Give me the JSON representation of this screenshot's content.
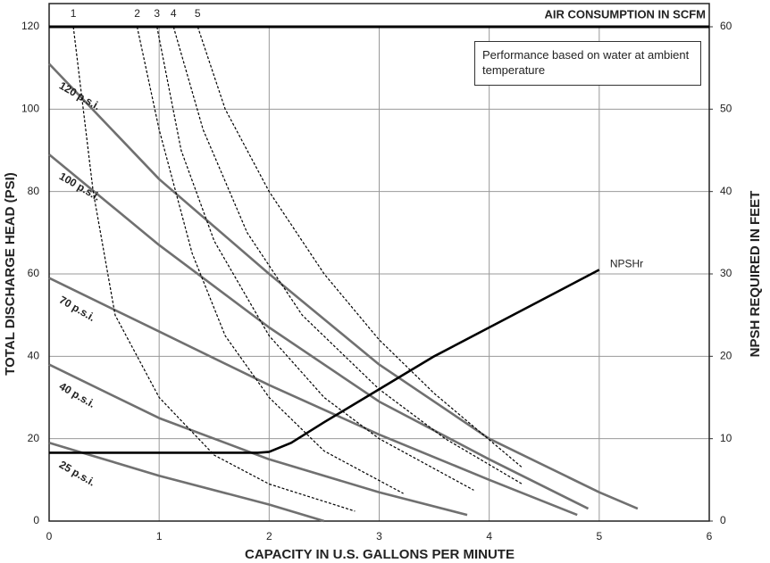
{
  "chart_data": {
    "type": "line",
    "top_label": "AIR CONSUMPTION IN SCFM",
    "x_label": "CAPACITY IN U.S. GALLONS PER MINUTE",
    "y_label": "TOTAL DISCHARGE HEAD (PSI)",
    "y2_label": "NPSH REQUIRED IN FEET",
    "annotation": "Performance based on water at ambient temperature",
    "xlim": [
      0,
      6
    ],
    "xticks": [
      0,
      1,
      2,
      3,
      4,
      5,
      6
    ],
    "ylim": [
      0,
      120
    ],
    "yticks": [
      0,
      20,
      40,
      60,
      80,
      100,
      120
    ],
    "y2lim": [
      0,
      60
    ],
    "y2ticks": [
      0,
      10,
      20,
      30,
      40,
      50,
      60
    ],
    "grid": true,
    "series": [
      {
        "name": "120 p.s.i.",
        "color": "#707070",
        "x": [
          0,
          1,
          2,
          3,
          4,
          5,
          5.35
        ],
        "values": [
          111,
          83,
          60,
          38,
          20,
          7,
          3
        ]
      },
      {
        "name": "100 p.s.i.",
        "color": "#707070",
        "x": [
          0,
          1,
          2,
          3,
          4,
          4.9
        ],
        "values": [
          89,
          67,
          47,
          29,
          15,
          3
        ]
      },
      {
        "name": "70 p.s.i.",
        "color": "#707070",
        "x": [
          0,
          1,
          2,
          3,
          4,
          4.8
        ],
        "values": [
          59,
          46,
          33,
          21,
          10,
          1.5
        ]
      },
      {
        "name": "40 p.s.i.",
        "color": "#707070",
        "x": [
          0,
          1,
          2,
          3,
          3.8
        ],
        "values": [
          38,
          25,
          15,
          7,
          1.5
        ]
      },
      {
        "name": "25 p.s.i.",
        "color": "#707070",
        "x": [
          0,
          1,
          2,
          2.5
        ],
        "values": [
          19,
          11,
          4,
          0
        ]
      },
      {
        "name": "1",
        "color": "#000000",
        "dashed": true,
        "x": [
          0.22,
          0.4,
          0.6,
          1,
          1.5,
          2,
          2.78
        ],
        "values": [
          120,
          80,
          50,
          30,
          16,
          9,
          2.4
        ]
      },
      {
        "name": "2",
        "color": "#000000",
        "dashed": true,
        "x": [
          0.8,
          1,
          1.3,
          1.6,
          2,
          2.5,
          3.22
        ],
        "values": [
          120,
          95,
          65,
          45,
          30,
          17,
          6.7
        ]
      },
      {
        "name": "3",
        "color": "#000000",
        "dashed": true,
        "x": [
          0.98,
          1.2,
          1.5,
          2,
          2.5,
          3,
          3.86
        ],
        "values": [
          120,
          90,
          68,
          45,
          30,
          20,
          7.5
        ]
      },
      {
        "name": "4",
        "color": "#000000",
        "dashed": true,
        "x": [
          1.13,
          1.4,
          1.8,
          2.3,
          3,
          3.6,
          4.3
        ],
        "values": [
          120,
          95,
          70,
          50,
          32,
          20,
          9
        ]
      },
      {
        "name": "5",
        "color": "#000000",
        "dashed": true,
        "x": [
          1.35,
          1.6,
          2,
          2.5,
          3,
          3.5,
          4.3
        ],
        "values": [
          120,
          100,
          80,
          60,
          44,
          31,
          13
        ]
      },
      {
        "name": "NPSHr",
        "color": "#000000",
        "axis": "y2",
        "x": [
          0,
          1.9,
          2,
          2.2,
          2.5,
          3,
          3.5,
          4,
          5
        ],
        "values": [
          8.3,
          8.3,
          8.4,
          9.5,
          12,
          16,
          20,
          23.5,
          30.5
        ]
      }
    ]
  }
}
